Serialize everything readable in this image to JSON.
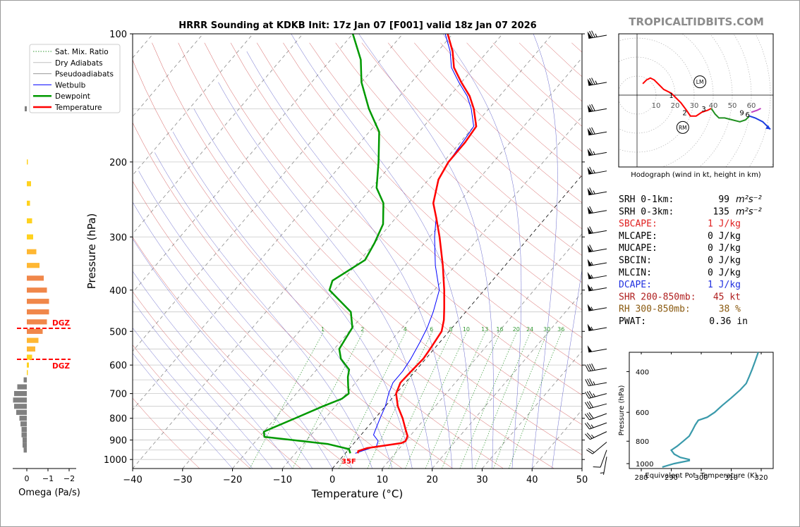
{
  "title": "HRRR Sounding at KDKB Init: 17z Jan 07 [F001] valid 18z Jan 07 2026",
  "watermark": "TROPICALTIDBITS.COM",
  "colors": {
    "temperature": "#ff0000",
    "dewpoint": "#009900",
    "wetbulb": "#0000ff",
    "dry_adiabat": "#d45a5a",
    "moist_adiabat": "#6666cc",
    "mixing_ratio": "#339933",
    "isotherm": "#555555",
    "omega_neg": "#808080",
    "theta_e": "#3a9aab",
    "dgz": "#ff0000",
    "hodo_low": "#ff0000",
    "hodo_mid": "#209020",
    "hodo_up": "#1a3de0",
    "hodo_top": "#c040c0"
  },
  "chart_data": [
    {
      "id": "skewt",
      "type": "line",
      "xlabel": "Temperature (°C)",
      "ylabel": "Pressure (hPa)",
      "xlim": [
        -40,
        50
      ],
      "ylim": [
        1050,
        100
      ],
      "y_scale": "log",
      "x_ticks": [
        "−40",
        "−30",
        "−20",
        "−10",
        "0",
        "10",
        "20",
        "30",
        "40",
        "50"
      ],
      "y_ticks": [
        "100",
        "200",
        "300",
        "400",
        "500",
        "600",
        "700",
        "800",
        "900",
        "1000"
      ],
      "legend": [
        "Sat. Mix. Ratio",
        "Dry Adiabats",
        "Pseudoadiabats",
        "Wetbulb",
        "Dewpoint",
        "Temperature"
      ],
      "legend_position": "upper-left",
      "mixing_ratio_labels": [
        "1",
        "2",
        "4",
        "6",
        "8",
        "10",
        "13",
        "16",
        "20",
        "24",
        "30",
        "36"
      ],
      "surface_label": "35F",
      "series": [
        {
          "name": "Temperature",
          "points": [
            [
              967,
              2.5
            ],
            [
              955,
              2.2
            ],
            [
              940,
              3.5
            ],
            [
              915,
              9.5
            ],
            [
              905,
              10.0
            ],
            [
              880,
              9.5
            ],
            [
              850,
              8.0
            ],
            [
              800,
              5.5
            ],
            [
              750,
              2.5
            ],
            [
              700,
              0.0
            ],
            [
              660,
              -1.0
            ],
            [
              620,
              -0.8
            ],
            [
              580,
              -0.5
            ],
            [
              550,
              -0.8
            ],
            [
              500,
              -1.5
            ],
            [
              470,
              -3.0
            ],
            [
              440,
              -5.0
            ],
            [
              400,
              -8.0
            ],
            [
              350,
              -12.5
            ],
            [
              300,
              -18.0
            ],
            [
              270,
              -22.0
            ],
            [
              250,
              -25.0
            ],
            [
              220,
              -28.0
            ],
            [
              200,
              -29.0
            ],
            [
              180,
              -29.0
            ],
            [
              165,
              -29.5
            ],
            [
              150,
              -33.0
            ],
            [
              140,
              -36.0
            ],
            [
              130,
              -40.0
            ],
            [
              120,
              -44.0
            ],
            [
              110,
              -47.0
            ],
            [
              100,
              -51.0
            ]
          ]
        },
        {
          "name": "Dewpoint",
          "points": [
            [
              967,
              1.0
            ],
            [
              945,
              0.0
            ],
            [
              920,
              -5.0
            ],
            [
              885,
              -19.0
            ],
            [
              860,
              -20.0
            ],
            [
              800,
              -16.0
            ],
            [
              750,
              -12.5
            ],
            [
              720,
              -10.0
            ],
            [
              700,
              -9.5
            ],
            [
              670,
              -11.0
            ],
            [
              640,
              -12.5
            ],
            [
              615,
              -13.5
            ],
            [
              580,
              -17.0
            ],
            [
              550,
              -19.0
            ],
            [
              520,
              -19.5
            ],
            [
              490,
              -20.0
            ],
            [
              450,
              -23.0
            ],
            [
              400,
              -31.0
            ],
            [
              380,
              -32.0
            ],
            [
              340,
              -29.0
            ],
            [
              310,
              -30.0
            ],
            [
              280,
              -31.5
            ],
            [
              250,
              -35.0
            ],
            [
              230,
              -39.0
            ],
            [
              200,
              -43.0
            ],
            [
              170,
              -48.0
            ],
            [
              150,
              -54.0
            ],
            [
              130,
              -60.0
            ],
            [
              115,
              -64.0
            ],
            [
              100,
              -70.0
            ]
          ]
        },
        {
          "name": "Wetbulb",
          "points": [
            [
              967,
              2.0
            ],
            [
              930,
              5.0
            ],
            [
              905,
              4.5
            ],
            [
              875,
              2.5
            ],
            [
              850,
              2.0
            ],
            [
              800,
              1.0
            ],
            [
              750,
              0.0
            ],
            [
              700,
              -1.5
            ],
            [
              660,
              -2.5
            ],
            [
              620,
              -2.5
            ],
            [
              580,
              -3.0
            ],
            [
              530,
              -4.0
            ],
            [
              490,
              -5.0
            ],
            [
              450,
              -6.5
            ],
            [
              400,
              -9.0
            ],
            [
              350,
              -14.0
            ],
            [
              300,
              -19.0
            ],
            [
              270,
              -22.0
            ],
            [
              250,
              -25.0
            ],
            [
              220,
              -28.0
            ],
            [
              200,
              -29.0
            ],
            [
              180,
              -29.5
            ],
            [
              165,
              -30.0
            ],
            [
              150,
              -33.5
            ],
            [
              140,
              -36.5
            ],
            [
              130,
              -40.5
            ],
            [
              120,
              -44.5
            ],
            [
              110,
              -47.5
            ],
            [
              100,
              -51.5
            ]
          ]
        }
      ],
      "dgz_levels_hpa": [
        487,
        590
      ],
      "dgz_labels": [
        "DGZ",
        "DGZ"
      ],
      "wind_barbs": [
        {
          "p": 100,
          "spd": 75,
          "dir": 260
        },
        {
          "p": 130,
          "spd": 75,
          "dir": 260
        },
        {
          "p": 150,
          "spd": 70,
          "dir": 260
        },
        {
          "p": 170,
          "spd": 70,
          "dir": 260
        },
        {
          "p": 190,
          "spd": 65,
          "dir": 260
        },
        {
          "p": 210,
          "spd": 65,
          "dir": 260
        },
        {
          "p": 235,
          "spd": 65,
          "dir": 260
        },
        {
          "p": 260,
          "spd": 60,
          "dir": 260
        },
        {
          "p": 290,
          "spd": 60,
          "dir": 260
        },
        {
          "p": 320,
          "spd": 60,
          "dir": 260
        },
        {
          "p": 345,
          "spd": 55,
          "dir": 260
        },
        {
          "p": 370,
          "spd": 55,
          "dir": 260
        },
        {
          "p": 395,
          "spd": 55,
          "dir": 260
        },
        {
          "p": 440,
          "spd": 55,
          "dir": 260
        },
        {
          "p": 490,
          "spd": 55,
          "dir": 260
        },
        {
          "p": 550,
          "spd": 50,
          "dir": 260
        },
        {
          "p": 610,
          "spd": 40,
          "dir": 260
        },
        {
          "p": 660,
          "spd": 35,
          "dir": 260
        },
        {
          "p": 700,
          "spd": 35,
          "dir": 255
        },
        {
          "p": 740,
          "spd": 30,
          "dir": 255
        },
        {
          "p": 780,
          "spd": 30,
          "dir": 250
        },
        {
          "p": 820,
          "spd": 25,
          "dir": 250
        },
        {
          "p": 860,
          "spd": 25,
          "dir": 245
        },
        {
          "p": 910,
          "spd": 20,
          "dir": 230
        },
        {
          "p": 950,
          "spd": 10,
          "dir": 200
        },
        {
          "p": 985,
          "spd": 5,
          "dir": 190
        }
      ]
    },
    {
      "id": "omega",
      "type": "bar",
      "xlabel": "Omega (Pa/s)",
      "x_ticks": [
        "0",
        "−1",
        "−2"
      ],
      "bars": [
        {
          "p": 150,
          "w": -0.1
        },
        {
          "p": 200,
          "w": 0.05
        },
        {
          "p": 225,
          "w": 0.2
        },
        {
          "p": 250,
          "w": 0.15
        },
        {
          "p": 275,
          "w": 0.25
        },
        {
          "p": 300,
          "w": 0.3
        },
        {
          "p": 325,
          "w": 0.45
        },
        {
          "p": 350,
          "w": 0.6
        },
        {
          "p": 375,
          "w": 0.8
        },
        {
          "p": 400,
          "w": 0.95
        },
        {
          "p": 425,
          "w": 1.05
        },
        {
          "p": 450,
          "w": 1.05
        },
        {
          "p": 475,
          "w": 0.95
        },
        {
          "p": 500,
          "w": 0.75
        },
        {
          "p": 525,
          "w": 0.55
        },
        {
          "p": 550,
          "w": 0.4
        },
        {
          "p": 575,
          "w": 0.25
        },
        {
          "p": 600,
          "w": 0.1
        },
        {
          "p": 625,
          "w": 0.05
        },
        {
          "p": 650,
          "w": -0.15
        },
        {
          "p": 675,
          "w": -0.45
        },
        {
          "p": 700,
          "w": -0.6
        },
        {
          "p": 725,
          "w": -0.65
        },
        {
          "p": 750,
          "w": -0.6
        },
        {
          "p": 775,
          "w": -0.5
        },
        {
          "p": 800,
          "w": -0.35
        },
        {
          "p": 825,
          "w": -0.3
        },
        {
          "p": 850,
          "w": -0.25
        },
        {
          "p": 875,
          "w": -0.25
        },
        {
          "p": 900,
          "w": -0.2
        },
        {
          "p": 925,
          "w": -0.2
        },
        {
          "p": 950,
          "w": -0.15
        }
      ]
    },
    {
      "id": "hodograph",
      "type": "line",
      "caption": "Hodograph (wind in kt, height in km)",
      "ring_labels": [
        "10",
        "20",
        "30",
        "40",
        "50",
        "60"
      ],
      "height_labels": [
        "1",
        "2",
        "3",
        "6",
        "9"
      ],
      "storm_motion_labels": [
        "LM",
        "RM"
      ],
      "segments": [
        {
          "name": "0-1 km",
          "uv": [
            [
              3,
              6
            ],
            [
              5,
              8
            ],
            [
              7,
              9
            ],
            [
              9,
              8
            ],
            [
              12,
              5
            ],
            [
              14,
              3
            ],
            [
              18,
              1
            ],
            [
              19,
              0
            ]
          ]
        },
        {
          "name": "1-3 km",
          "uv": [
            [
              19,
              0
            ],
            [
              23,
              -4
            ],
            [
              26,
              -8
            ],
            [
              28,
              -11
            ],
            [
              31,
              -11
            ],
            [
              34,
              -9
            ],
            [
              37,
              -8
            ],
            [
              39,
              -7
            ]
          ]
        },
        {
          "name": "3-6 km",
          "uv": [
            [
              39,
              -7
            ],
            [
              41,
              -10
            ],
            [
              43,
              -12
            ],
            [
              46,
              -12
            ],
            [
              50,
              -13
            ],
            [
              54,
              -14
            ],
            [
              57,
              -13
            ],
            [
              59,
              -11
            ]
          ]
        },
        {
          "name": "6-9 km",
          "uv": [
            [
              59,
              -11
            ],
            [
              62,
              -12
            ],
            [
              66,
              -14
            ],
            [
              68,
              -16
            ],
            [
              70,
              -18
            ]
          ]
        },
        {
          "name": "9+ km",
          "uv": [
            [
              60,
              -9
            ],
            [
              63,
              -8
            ],
            [
              65,
              -7
            ]
          ]
        }
      ],
      "storm_motion": {
        "LM": [
          33,
          7
        ],
        "RM": [
          24,
          -17
        ]
      }
    },
    {
      "id": "theta_e",
      "type": "line",
      "xlabel": "Equivalent Pot. Temperature (K)",
      "ylabel": "Pressure (hPa)",
      "x_ticks": [
        "280",
        "290",
        "300",
        "310",
        "320"
      ],
      "y_ticks": [
        "400",
        "600",
        "800",
        "1000"
      ],
      "xlim": [
        276,
        324
      ],
      "ylim": [
        1050,
        330
      ],
      "points": [
        [
          1035,
          287
        ],
        [
          1000,
          291
        ],
        [
          970,
          296
        ],
        [
          960,
          296
        ],
        [
          940,
          293
        ],
        [
          910,
          291
        ],
        [
          875,
          290
        ],
        [
          840,
          292
        ],
        [
          800,
          294
        ],
        [
          760,
          296
        ],
        [
          720,
          297
        ],
        [
          680,
          298
        ],
        [
          650,
          299
        ],
        [
          630,
          302
        ],
        [
          600,
          304.5
        ],
        [
          560,
          307
        ],
        [
          520,
          310
        ],
        [
          480,
          313
        ],
        [
          450,
          315
        ],
        [
          420,
          316
        ],
        [
          390,
          317
        ],
        [
          360,
          318
        ],
        [
          330,
          319
        ]
      ]
    }
  ],
  "stats": [
    {
      "label": "SRH 0-1km:",
      "value": "99",
      "unit": "m²s⁻²",
      "color": "#000000"
    },
    {
      "label": "SRH 0-3km:",
      "value": "135",
      "unit": "m²s⁻²",
      "color": "#000000"
    },
    {
      "label": "SBCAPE:",
      "value": "1 J/kg",
      "unit": "",
      "color": "#e02020"
    },
    {
      "label": "MLCAPE:",
      "value": "0 J/kg",
      "unit": "",
      "color": "#000000"
    },
    {
      "label": "MUCAPE:",
      "value": "0 J/kg",
      "unit": "",
      "color": "#000000"
    },
    {
      "label": "SBCIN:",
      "value": "0 J/kg",
      "unit": "",
      "color": "#000000"
    },
    {
      "label": "MLCIN:",
      "value": "0 J/kg",
      "unit": "",
      "color": "#000000"
    },
    {
      "label": "DCAPE:",
      "value": "1 J/kg",
      "unit": "",
      "color": "#2030e0"
    },
    {
      "label": "SHR 200-850mb:",
      "value": "45 kt",
      "unit": "",
      "color": "#b02020"
    },
    {
      "label": "RH 300-850mb:",
      "value": "38 %",
      "unit": "",
      "color": "#8a5a10"
    },
    {
      "label": "PWAT:",
      "value": "0.36 in",
      "unit": "",
      "color": "#000000"
    }
  ]
}
